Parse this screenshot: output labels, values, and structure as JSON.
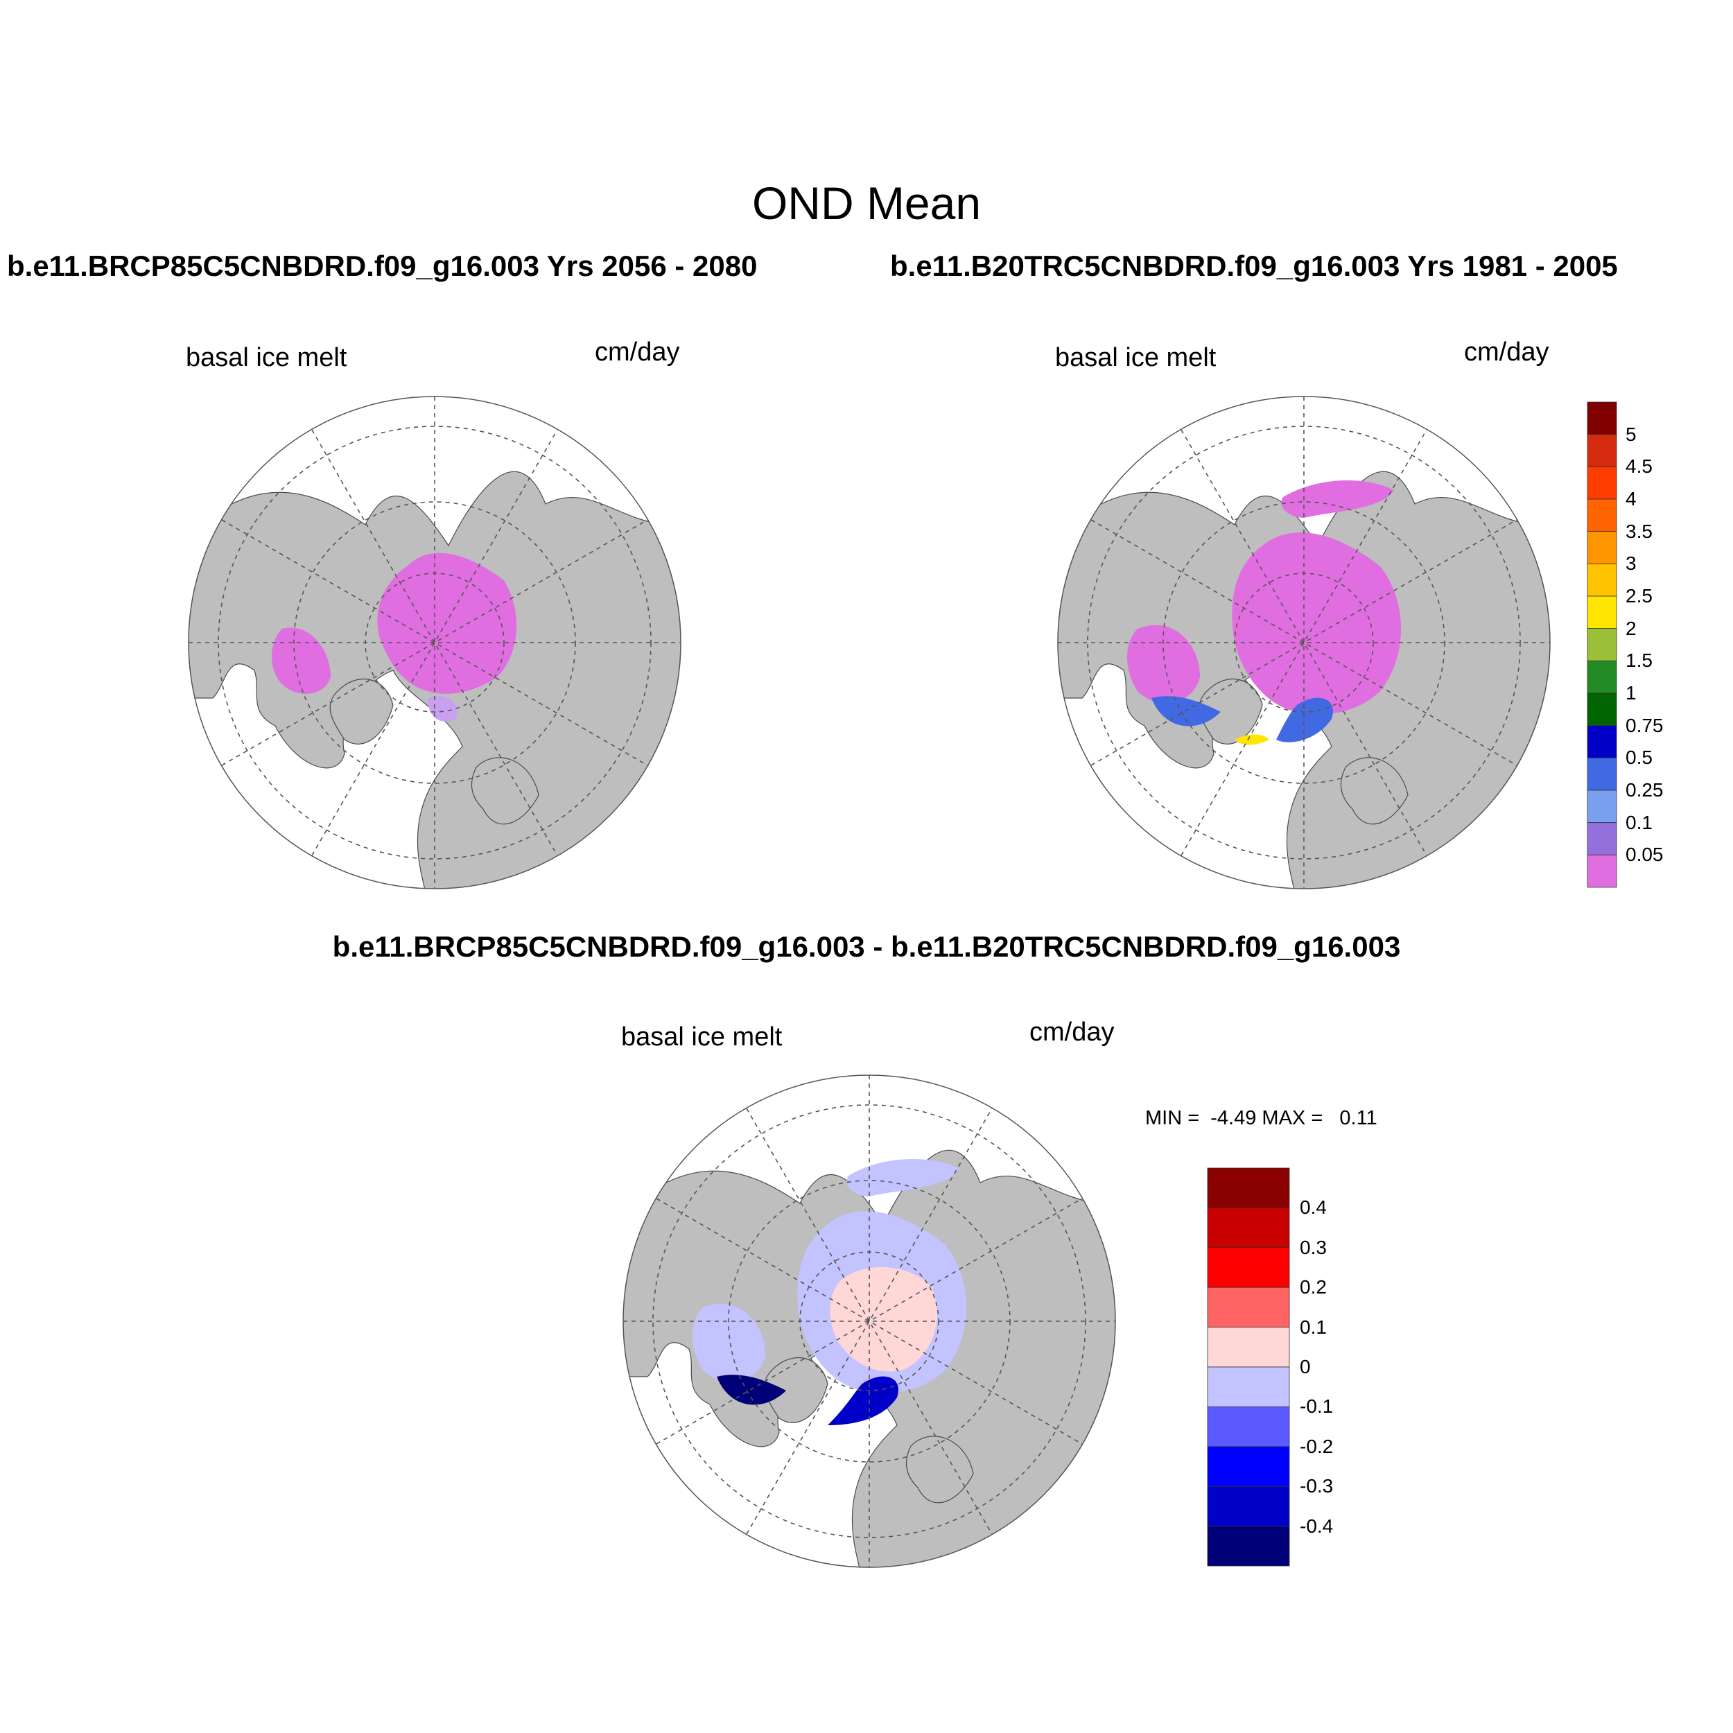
{
  "figure": {
    "title": "OND Mean",
    "panels": [
      {
        "id": "left",
        "title": "b.e11.BRCP85C5CNBDRD.f09_g16.003  Yrs 2056 - 2080",
        "variable": "basal ice melt",
        "units": "cm/day"
      },
      {
        "id": "right",
        "title": "b.e11.B20TRC5CNBDRD.f09_g16.003  Yrs 1981 - 2005",
        "variable": "basal ice melt",
        "units": "cm/day"
      },
      {
        "id": "diff",
        "title": "b.e11.BRCP85C5CNBDRD.f09_g16.003 - b.e11.B20TRC5CNBDRD.f09_g16.003",
        "variable": "basal ice melt",
        "units": "cm/day",
        "minmax": "MIN =  -4.49 MAX =   0.11"
      }
    ]
  },
  "colors": {
    "land": "#bebebe",
    "ocean": "#ffffff",
    "melt_low": "#e06ee0"
  },
  "colorbar_main": {
    "labels": [
      "5",
      "4.5",
      "4",
      "3.5",
      "3",
      "2.5",
      "2",
      "1.5",
      "1",
      "0.75",
      "0.5",
      "0.25",
      "0.1",
      "0.05"
    ],
    "colors": [
      "#800000",
      "#d42a10",
      "#ff3c00",
      "#ff6400",
      "#ff9600",
      "#ffc300",
      "#ffe600",
      "#9bc038",
      "#238b23",
      "#006400",
      "#0000c8",
      "#4169e1",
      "#7aa0f0",
      "#9370db",
      "#e06ee0"
    ]
  },
  "colorbar_diff": {
    "labels": [
      "0.4",
      "0.3",
      "0.2",
      "0.1",
      "0",
      "-0.1",
      "-0.2",
      "-0.3",
      "-0.4"
    ],
    "colors": [
      "#8b0000",
      "#c80000",
      "#ff0000",
      "#ff6464",
      "#ffd7d7",
      "#c3c3ff",
      "#5a5aff",
      "#0000ff",
      "#0000c8",
      "#000078"
    ]
  }
}
